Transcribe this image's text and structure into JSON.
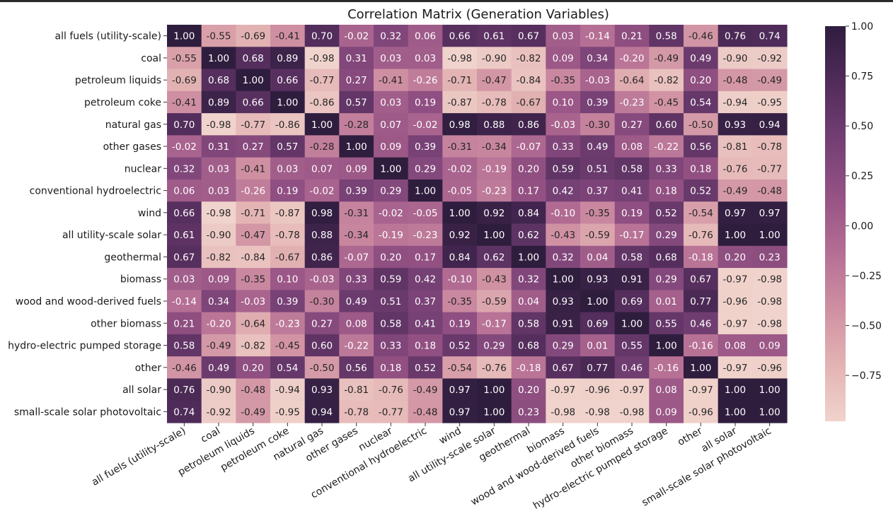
{
  "chart_data": {
    "type": "heatmap",
    "title": "Correlation Matrix (Generation Variables)",
    "xlabel": "",
    "ylabel": "",
    "labels": [
      "all fuels (utility-scale)",
      "coal",
      "petroleum liquids",
      "petroleum coke",
      "natural gas",
      "other gases",
      "nuclear",
      "conventional hydroelectric",
      "wind",
      "all utility-scale solar",
      "geothermal",
      "biomass",
      "wood and wood-derived fuels",
      "other biomass",
      "hydro-electric pumped storage",
      "other",
      "all solar",
      "small-scale solar photovoltaic"
    ],
    "values": [
      [
        1.0,
        -0.55,
        -0.69,
        -0.41,
        0.7,
        -0.02,
        0.32,
        0.06,
        0.66,
        0.61,
        0.67,
        0.03,
        -0.14,
        0.21,
        0.58,
        -0.46,
        0.76,
        0.74
      ],
      [
        -0.55,
        1.0,
        0.68,
        0.89,
        -0.98,
        0.31,
        0.03,
        0.03,
        -0.98,
        -0.9,
        -0.82,
        0.09,
        0.34,
        -0.2,
        -0.49,
        0.49,
        -0.9,
        -0.92
      ],
      [
        -0.69,
        0.68,
        1.0,
        0.66,
        -0.77,
        0.27,
        -0.41,
        -0.26,
        -0.71,
        -0.47,
        -0.84,
        -0.35,
        -0.03,
        -0.64,
        -0.82,
        0.2,
        -0.48,
        -0.49
      ],
      [
        -0.41,
        0.89,
        0.66,
        1.0,
        -0.86,
        0.57,
        0.03,
        0.19,
        -0.87,
        -0.78,
        -0.67,
        0.1,
        0.39,
        -0.23,
        -0.45,
        0.54,
        -0.94,
        -0.95
      ],
      [
        0.7,
        -0.98,
        -0.77,
        -0.86,
        1.0,
        -0.28,
        0.07,
        -0.02,
        0.98,
        0.88,
        0.86,
        -0.03,
        -0.3,
        0.27,
        0.6,
        -0.5,
        0.93,
        0.94
      ],
      [
        -0.02,
        0.31,
        0.27,
        0.57,
        -0.28,
        1.0,
        0.09,
        0.39,
        -0.31,
        -0.34,
        -0.07,
        0.33,
        0.49,
        0.08,
        -0.22,
        0.56,
        -0.81,
        -0.78
      ],
      [
        0.32,
        0.03,
        -0.41,
        0.03,
        0.07,
        0.09,
        1.0,
        0.29,
        -0.02,
        -0.19,
        0.2,
        0.59,
        0.51,
        0.58,
        0.33,
        0.18,
        -0.76,
        -0.77
      ],
      [
        0.06,
        0.03,
        -0.26,
        0.19,
        -0.02,
        0.39,
        0.29,
        1.0,
        -0.05,
        -0.23,
        0.17,
        0.42,
        0.37,
        0.41,
        0.18,
        0.52,
        -0.49,
        -0.48
      ],
      [
        0.66,
        -0.98,
        -0.71,
        -0.87,
        0.98,
        -0.31,
        -0.02,
        -0.05,
        1.0,
        0.92,
        0.84,
        -0.1,
        -0.35,
        0.19,
        0.52,
        -0.54,
        0.97,
        0.97
      ],
      [
        0.61,
        -0.9,
        -0.47,
        -0.78,
        0.88,
        -0.34,
        -0.19,
        -0.23,
        0.92,
        1.0,
        0.62,
        -0.43,
        -0.59,
        -0.17,
        0.29,
        -0.76,
        1.0,
        1.0
      ],
      [
        0.67,
        -0.82,
        -0.84,
        -0.67,
        0.86,
        -0.07,
        0.2,
        0.17,
        0.84,
        0.62,
        1.0,
        0.32,
        0.04,
        0.58,
        0.68,
        -0.18,
        0.2,
        0.23
      ],
      [
        0.03,
        0.09,
        -0.35,
        0.1,
        -0.03,
        0.33,
        0.59,
        0.42,
        -0.1,
        -0.43,
        0.32,
        1.0,
        0.93,
        0.91,
        0.29,
        0.67,
        -0.97,
        -0.98
      ],
      [
        -0.14,
        0.34,
        -0.03,
        0.39,
        -0.3,
        0.49,
        0.51,
        0.37,
        -0.35,
        -0.59,
        0.04,
        0.93,
        1.0,
        0.69,
        0.01,
        0.77,
        -0.96,
        -0.98
      ],
      [
        0.21,
        -0.2,
        -0.64,
        -0.23,
        0.27,
        0.08,
        0.58,
        0.41,
        0.19,
        -0.17,
        0.58,
        0.91,
        0.69,
        1.0,
        0.55,
        0.46,
        -0.97,
        -0.98
      ],
      [
        0.58,
        -0.49,
        -0.82,
        -0.45,
        0.6,
        -0.22,
        0.33,
        0.18,
        0.52,
        0.29,
        0.68,
        0.29,
        0.01,
        0.55,
        1.0,
        -0.16,
        0.08,
        0.09
      ],
      [
        -0.46,
        0.49,
        0.2,
        0.54,
        -0.5,
        0.56,
        0.18,
        0.52,
        -0.54,
        -0.76,
        -0.18,
        0.67,
        0.77,
        0.46,
        -0.16,
        1.0,
        -0.97,
        -0.96
      ],
      [
        0.76,
        -0.9,
        -0.48,
        -0.94,
        0.93,
        -0.81,
        -0.76,
        -0.49,
        0.97,
        1.0,
        0.2,
        -0.97,
        -0.96,
        -0.97,
        0.08,
        -0.97,
        1.0,
        1.0
      ],
      [
        0.74,
        -0.92,
        -0.49,
        -0.95,
        0.94,
        -0.78,
        -0.77,
        -0.48,
        0.97,
        1.0,
        0.23,
        -0.98,
        -0.98,
        -0.98,
        0.09,
        -0.96,
        1.0,
        1.0
      ]
    ],
    "color_range": [
      -0.98,
      1.0
    ],
    "colorbar_ticks": [
      1.0,
      0.75,
      0.5,
      0.25,
      0.0,
      -0.25,
      -0.5,
      -0.75
    ],
    "colorbar_tick_labels": [
      "1.00",
      "0.75",
      "0.50",
      "0.25",
      "0.00",
      "−0.25",
      "−0.50",
      "−0.75"
    ],
    "colormap": [
      "#f0d3cc",
      "#e3b3b3",
      "#cf8fa2",
      "#b46e94",
      "#955284",
      "#733f73",
      "#512c5a",
      "#2f1d3e"
    ],
    "annotations": true,
    "legend": "colorbar-right"
  }
}
